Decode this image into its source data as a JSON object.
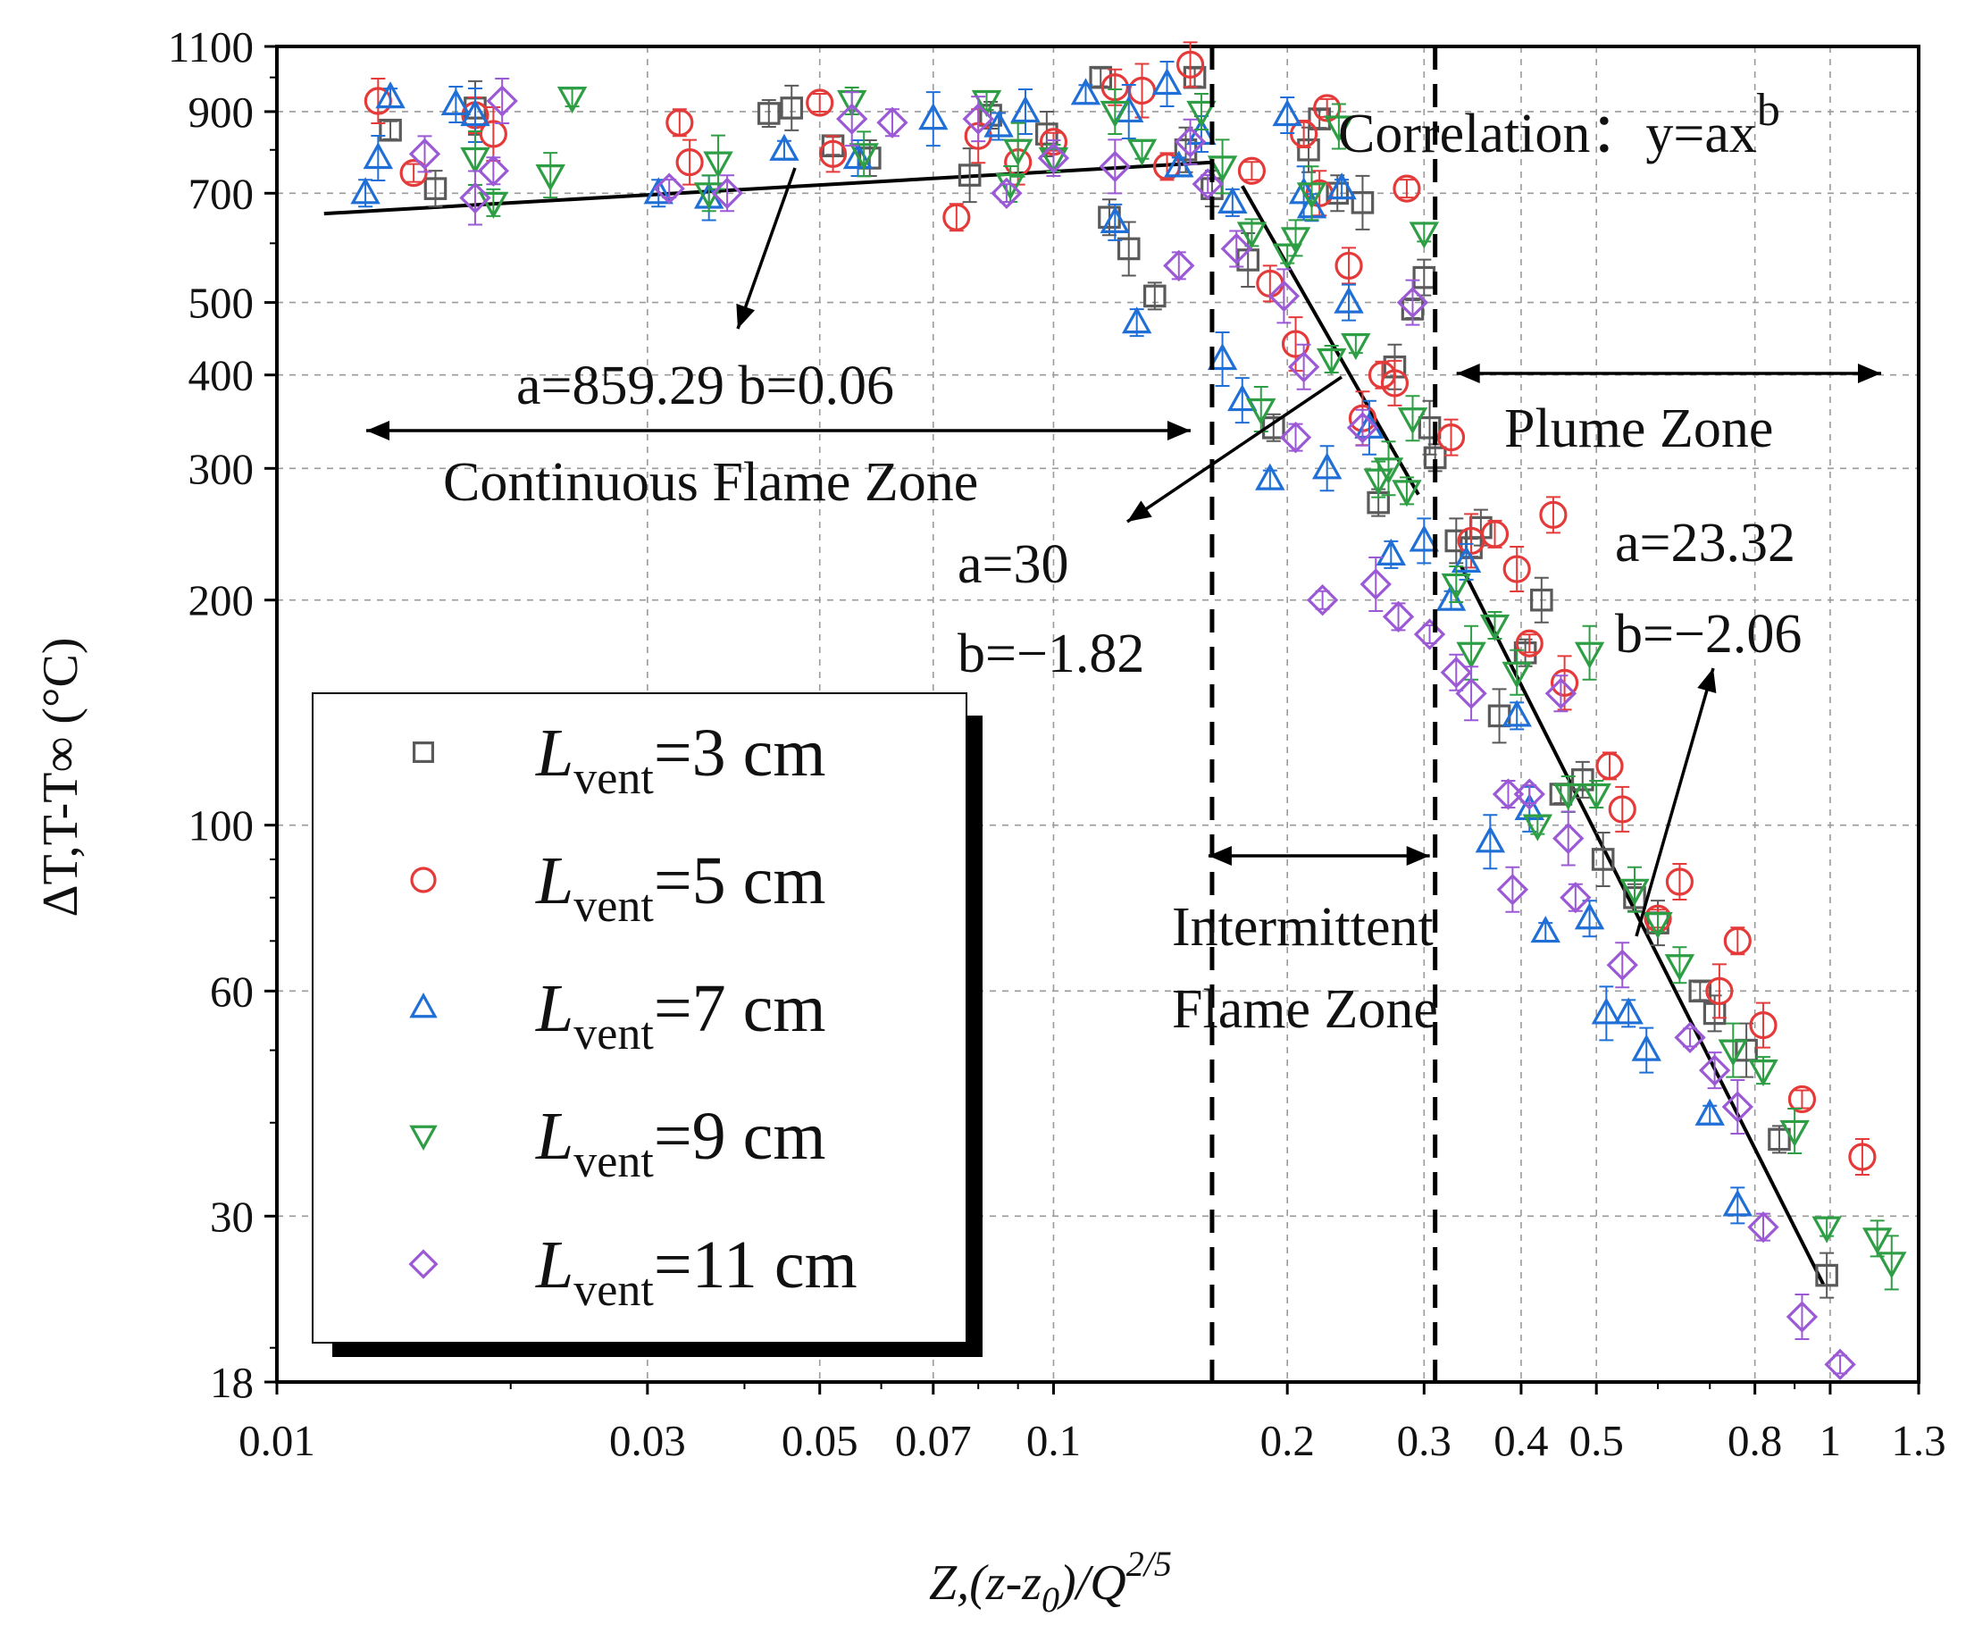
{
  "chart_data": {
    "type": "scatter",
    "x_scale": "log",
    "y_scale": "log",
    "xlim": [
      0.01,
      1.3
    ],
    "ylim": [
      18,
      1100
    ],
    "grid": true,
    "xlabel": {
      "main": "Z,(z-z",
      "sub": "0",
      "mid": ")/",
      "q": "Q",
      "sup": "2/5"
    },
    "ylabel": "ΔT,T-T∞ (°C)",
    "x_ticks": [
      {
        "v": 0.01,
        "t": "0.01"
      },
      {
        "v": 0.03,
        "t": "0.03"
      },
      {
        "v": 0.05,
        "t": "0.05"
      },
      {
        "v": 0.07,
        "t": "0.07"
      },
      {
        "v": 0.1,
        "t": "0.1"
      },
      {
        "v": 0.2,
        "t": "0.2"
      },
      {
        "v": 0.3,
        "t": "0.3"
      },
      {
        "v": 0.4,
        "t": "0.4"
      },
      {
        "v": 0.5,
        "t": "0.5"
      },
      {
        "v": 0.8,
        "t": "0.8"
      },
      {
        "v": 1,
        "t": "1"
      },
      {
        "v": 1.3,
        "t": "1.3"
      }
    ],
    "y_ticks": [
      {
        "v": 18,
        "t": "18"
      },
      {
        "v": 30,
        "t": "30"
      },
      {
        "v": 60,
        "t": "60"
      },
      {
        "v": 100,
        "t": "100"
      },
      {
        "v": 200,
        "t": "200"
      },
      {
        "v": 300,
        "t": "300"
      },
      {
        "v": 400,
        "t": "400"
      },
      {
        "v": 500,
        "t": "500"
      },
      {
        "v": 700,
        "t": "700"
      },
      {
        "v": 900,
        "t": "900"
      },
      {
        "v": 1100,
        "t": "1100"
      }
    ],
    "zone_boundaries": [
      0.16,
      0.31
    ],
    "fits": [
      {
        "zone": "Continuous Flame Zone",
        "a": 859.29,
        "b": 0.06,
        "x_range": [
          0.0115,
          0.16
        ]
      },
      {
        "zone": "Intermittent Flame Zone",
        "a": 30,
        "b": -1.82,
        "x_range": [
          0.175,
          0.295
        ]
      },
      {
        "zone": "Plume Zone",
        "a": 23.32,
        "b": -2.06,
        "x_range": [
          0.335,
          0.98
        ]
      }
    ],
    "annotations": {
      "correlation": "Correlation：y=ax",
      "correlation_exp": "b",
      "fit1": "a=859.29  b=0.06",
      "cont_zone": "Continuous Flame Zone",
      "fit2_a": "a=30",
      "fit2_b": "b=−1.82",
      "inter_zone_1": "Intermittent",
      "inter_zone_2": "Flame Zone",
      "plume_zone": "Plume Zone",
      "fit3_a": "a=23.32",
      "fit3_b": "b=−2.06"
    },
    "series": [
      {
        "name": "L_vent=3 cm",
        "label_main": "L",
        "label_sub": "vent",
        "label_rest": "=3 cm",
        "marker": "square",
        "color": "#5a5a5a",
        "points": [
          [
            0.014,
            850
          ],
          [
            0.016,
            710
          ],
          [
            0.018,
            910
          ],
          [
            0.043,
            895
          ],
          [
            0.046,
            910
          ],
          [
            0.052,
            810
          ],
          [
            0.058,
            780
          ],
          [
            0.078,
            740
          ],
          [
            0.083,
            890
          ],
          [
            0.098,
            840
          ],
          [
            0.115,
            1000
          ],
          [
            0.118,
            650
          ],
          [
            0.125,
            590
          ],
          [
            0.135,
            510
          ],
          [
            0.148,
            800
          ],
          [
            0.152,
            1000
          ],
          [
            0.16,
            710
          ],
          [
            0.178,
            570
          ],
          [
            0.192,
            340
          ],
          [
            0.213,
            800
          ],
          [
            0.22,
            880
          ],
          [
            0.232,
            700
          ],
          [
            0.25,
            680
          ],
          [
            0.262,
            270
          ],
          [
            0.275,
            410
          ],
          [
            0.29,
            490
          ],
          [
            0.3,
            540
          ],
          [
            0.305,
            340
          ],
          [
            0.31,
            310
          ],
          [
            0.33,
            240
          ],
          [
            0.345,
            235
          ],
          [
            0.355,
            250
          ],
          [
            0.375,
            140
          ],
          [
            0.405,
            170
          ],
          [
            0.425,
            200
          ],
          [
            0.45,
            110
          ],
          [
            0.48,
            115
          ],
          [
            0.51,
            90
          ],
          [
            0.56,
            80
          ],
          [
            0.6,
            74
          ],
          [
            0.68,
            60
          ],
          [
            0.71,
            56
          ],
          [
            0.78,
            50
          ],
          [
            0.86,
            38
          ],
          [
            0.99,
            25
          ]
        ]
      },
      {
        "name": "L_vent=5 cm",
        "label_main": "L",
        "label_sub": "vent",
        "label_rest": "=5 cm",
        "marker": "circle",
        "color": "#e53a3a",
        "points": [
          [
            0.0135,
            930
          ],
          [
            0.015,
            745
          ],
          [
            0.018,
            890
          ],
          [
            0.019,
            840
          ],
          [
            0.033,
            870
          ],
          [
            0.034,
            770
          ],
          [
            0.05,
            925
          ],
          [
            0.052,
            790
          ],
          [
            0.08,
            835
          ],
          [
            0.075,
            650
          ],
          [
            0.09,
            770
          ],
          [
            0.1,
            820
          ],
          [
            0.12,
            970
          ],
          [
            0.13,
            960
          ],
          [
            0.14,
            760
          ],
          [
            0.15,
            1040
          ],
          [
            0.18,
            750
          ],
          [
            0.19,
            530
          ],
          [
            0.205,
            440
          ],
          [
            0.21,
            840
          ],
          [
            0.22,
            700
          ],
          [
            0.225,
            910
          ],
          [
            0.24,
            560
          ],
          [
            0.25,
            350
          ],
          [
            0.265,
            400
          ],
          [
            0.275,
            390
          ],
          [
            0.285,
            710
          ],
          [
            0.325,
            330
          ],
          [
            0.345,
            240
          ],
          [
            0.37,
            245
          ],
          [
            0.395,
            220
          ],
          [
            0.41,
            175
          ],
          [
            0.44,
            260
          ],
          [
            0.455,
            155
          ],
          [
            0.52,
            120
          ],
          [
            0.54,
            105
          ],
          [
            0.6,
            75
          ],
          [
            0.64,
            84
          ],
          [
            0.72,
            60
          ],
          [
            0.76,
            70
          ],
          [
            0.82,
            54
          ],
          [
            0.92,
            43
          ],
          [
            1.1,
            36
          ]
        ]
      },
      {
        "name": "L_vent=7 cm",
        "label_main": "L",
        "label_sub": "vent",
        "label_rest": "=7 cm",
        "marker": "triangle-up",
        "color": "#1f6fd6",
        "points": [
          [
            0.013,
            700
          ],
          [
            0.0135,
            780
          ],
          [
            0.014,
            940
          ],
          [
            0.017,
            920
          ],
          [
            0.018,
            890
          ],
          [
            0.031,
            700
          ],
          [
            0.036,
            690
          ],
          [
            0.045,
            800
          ],
          [
            0.056,
            780
          ],
          [
            0.07,
            880
          ],
          [
            0.085,
            860
          ],
          [
            0.092,
            900
          ],
          [
            0.11,
            950
          ],
          [
            0.12,
            640
          ],
          [
            0.125,
            900
          ],
          [
            0.128,
            470
          ],
          [
            0.14,
            980
          ],
          [
            0.145,
            760
          ],
          [
            0.155,
            840
          ],
          [
            0.165,
            420
          ],
          [
            0.17,
            680
          ],
          [
            0.175,
            370
          ],
          [
            0.19,
            290
          ],
          [
            0.2,
            890
          ],
          [
            0.21,
            700
          ],
          [
            0.215,
            670
          ],
          [
            0.225,
            300
          ],
          [
            0.235,
            710
          ],
          [
            0.24,
            500
          ],
          [
            0.255,
            340
          ],
          [
            0.272,
            230
          ],
          [
            0.3,
            240
          ],
          [
            0.325,
            200
          ],
          [
            0.34,
            225
          ],
          [
            0.365,
            95
          ],
          [
            0.395,
            140
          ],
          [
            0.41,
            105
          ],
          [
            0.43,
            72
          ],
          [
            0.49,
            75
          ],
          [
            0.515,
            56
          ],
          [
            0.55,
            56
          ],
          [
            0.58,
            50
          ],
          [
            0.7,
            41
          ],
          [
            0.76,
            31
          ]
        ]
      },
      {
        "name": "L_vent=9 cm",
        "label_main": "L",
        "label_sub": "vent",
        "label_rest": "=9 cm",
        "marker": "triangle-down",
        "color": "#2e9e45",
        "points": [
          [
            0.018,
            780
          ],
          [
            0.019,
            680
          ],
          [
            0.0225,
            740
          ],
          [
            0.024,
            940
          ],
          [
            0.036,
            700
          ],
          [
            0.037,
            770
          ],
          [
            0.055,
            930
          ],
          [
            0.057,
            790
          ],
          [
            0.082,
            930
          ],
          [
            0.088,
            720
          ],
          [
            0.09,
            800
          ],
          [
            0.1,
            780
          ],
          [
            0.12,
            900
          ],
          [
            0.13,
            800
          ],
          [
            0.155,
            900
          ],
          [
            0.165,
            760
          ],
          [
            0.18,
            620
          ],
          [
            0.185,
            360
          ],
          [
            0.2,
            580
          ],
          [
            0.205,
            610
          ],
          [
            0.215,
            700
          ],
          [
            0.228,
            420
          ],
          [
            0.233,
            860
          ],
          [
            0.245,
            440
          ],
          [
            0.262,
            290
          ],
          [
            0.27,
            300
          ],
          [
            0.285,
            280
          ],
          [
            0.29,
            350
          ],
          [
            0.3,
            620
          ],
          [
            0.33,
            210
          ],
          [
            0.345,
            170
          ],
          [
            0.37,
            185
          ],
          [
            0.395,
            160
          ],
          [
            0.42,
            100
          ],
          [
            0.46,
            110
          ],
          [
            0.49,
            170
          ],
          [
            0.5,
            110
          ],
          [
            0.56,
            82
          ],
          [
            0.6,
            74
          ],
          [
            0.64,
            65
          ],
          [
            0.75,
            50
          ],
          [
            0.82,
            47
          ],
          [
            0.9,
            39
          ],
          [
            0.99,
            29
          ],
          [
            1.15,
            28
          ],
          [
            1.2,
            26
          ]
        ]
      },
      {
        "name": "L_vent=11 cm",
        "label_main": "L",
        "label_sub": "vent",
        "label_rest": "=11 cm",
        "marker": "diamond",
        "color": "#9b59d6",
        "points": [
          [
            0.0155,
            790
          ],
          [
            0.018,
            690
          ],
          [
            0.019,
            750
          ],
          [
            0.0195,
            930
          ],
          [
            0.032,
            710
          ],
          [
            0.038,
            700
          ],
          [
            0.055,
            880
          ],
          [
            0.062,
            870
          ],
          [
            0.08,
            880
          ],
          [
            0.087,
            700
          ],
          [
            0.1,
            780
          ],
          [
            0.12,
            760
          ],
          [
            0.145,
            560
          ],
          [
            0.15,
            820
          ],
          [
            0.158,
            720
          ],
          [
            0.172,
            590
          ],
          [
            0.198,
            510
          ],
          [
            0.205,
            330
          ],
          [
            0.21,
            410
          ],
          [
            0.222,
            200
          ],
          [
            0.25,
            340
          ],
          [
            0.26,
            210
          ],
          [
            0.278,
            190
          ],
          [
            0.29,
            500
          ],
          [
            0.305,
            180
          ],
          [
            0.33,
            160
          ],
          [
            0.345,
            150
          ],
          [
            0.385,
            110
          ],
          [
            0.39,
            82
          ],
          [
            0.41,
            110
          ],
          [
            0.45,
            150
          ],
          [
            0.46,
            96
          ],
          [
            0.47,
            80
          ],
          [
            0.54,
            65
          ],
          [
            0.66,
            52
          ],
          [
            0.71,
            47
          ],
          [
            0.76,
            42
          ],
          [
            0.82,
            29
          ],
          [
            0.92,
            22
          ],
          [
            1.03,
            19
          ]
        ]
      }
    ]
  }
}
